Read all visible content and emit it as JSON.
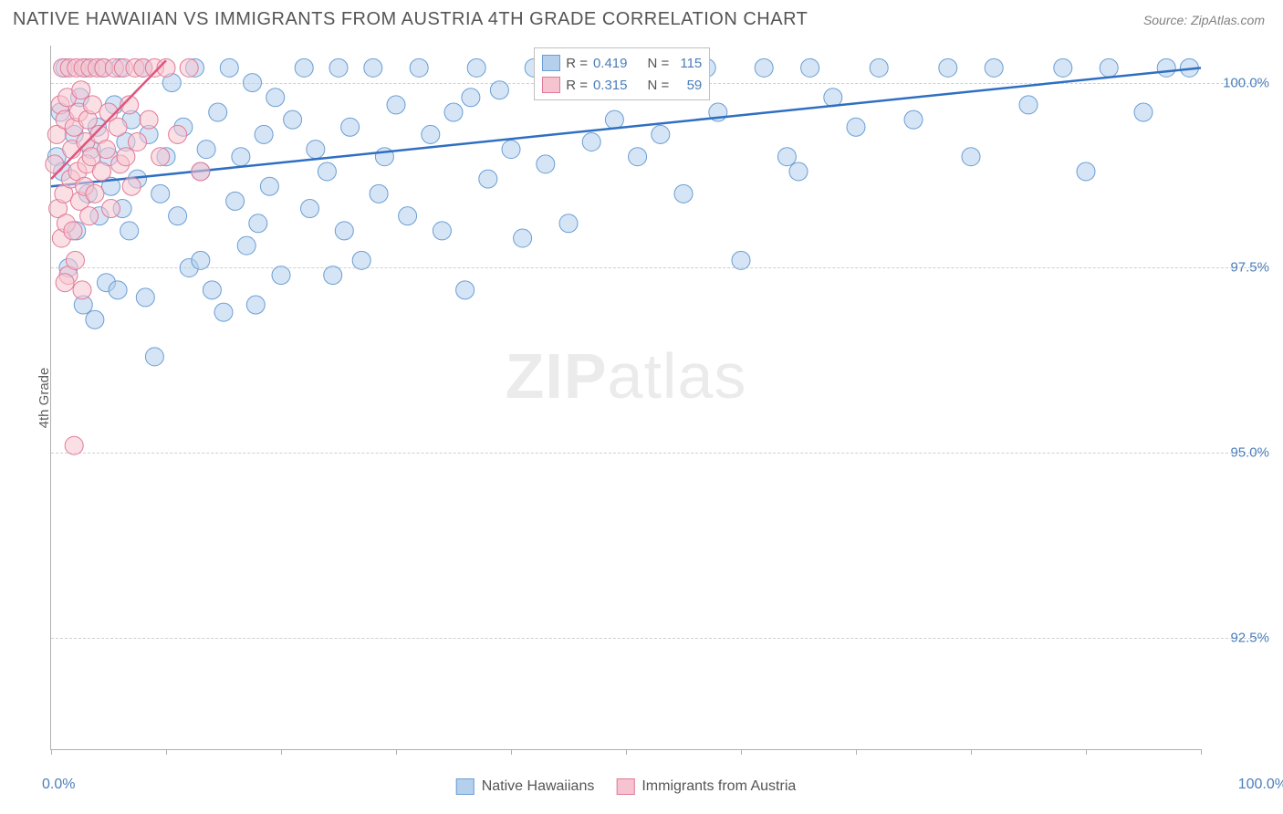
{
  "title": "NATIVE HAWAIIAN VS IMMIGRANTS FROM AUSTRIA 4TH GRADE CORRELATION CHART",
  "source": "Source: ZipAtlas.com",
  "y_axis_label": "4th Grade",
  "watermark_bold": "ZIP",
  "watermark_rest": "atlas",
  "chart": {
    "type": "scatter",
    "xlim": [
      0,
      100
    ],
    "ylim": [
      91.0,
      100.5
    ],
    "x_label_min": "0.0%",
    "x_label_max": "100.0%",
    "x_tick_positions": [
      0,
      10,
      20,
      30,
      40,
      50,
      60,
      70,
      80,
      90,
      100
    ],
    "y_gridlines": [
      92.5,
      95.0,
      97.5,
      100.0
    ],
    "y_tick_labels": [
      "92.5%",
      "95.0%",
      "97.5%",
      "100.0%"
    ],
    "grid_color": "#d0d0d0",
    "axis_color": "#b0b0b0",
    "label_color": "#4a7ebb",
    "marker_radius": 10,
    "marker_opacity": 0.55,
    "series": [
      {
        "name": "Native Hawaiians",
        "fill": "#b5d0ec",
        "stroke": "#6a9ed4",
        "trend": {
          "x1": 0,
          "y1": 98.6,
          "x2": 100,
          "y2": 100.2,
          "stroke": "#2f6fc1",
          "width": 2.5
        },
        "legend": {
          "r": "0.419",
          "n": "115"
        },
        "points": [
          [
            0.5,
            99.0
          ],
          [
            0.8,
            99.6
          ],
          [
            1.0,
            98.8
          ],
          [
            1.2,
            100.2
          ],
          [
            1.5,
            97.5
          ],
          [
            2.0,
            99.3
          ],
          [
            2.2,
            98.0
          ],
          [
            2.5,
            99.8
          ],
          [
            2.8,
            97.0
          ],
          [
            3.0,
            100.2
          ],
          [
            3.2,
            98.5
          ],
          [
            3.5,
            99.1
          ],
          [
            3.8,
            96.8
          ],
          [
            4.0,
            99.4
          ],
          [
            4.2,
            98.2
          ],
          [
            4.5,
            100.2
          ],
          [
            4.8,
            97.3
          ],
          [
            5.0,
            99.0
          ],
          [
            5.2,
            98.6
          ],
          [
            5.5,
            99.7
          ],
          [
            5.8,
            97.2
          ],
          [
            6.0,
            100.2
          ],
          [
            6.2,
            98.3
          ],
          [
            6.5,
            99.2
          ],
          [
            6.8,
            98.0
          ],
          [
            7.0,
            99.5
          ],
          [
            7.5,
            98.7
          ],
          [
            8.0,
            100.2
          ],
          [
            8.2,
            97.1
          ],
          [
            8.5,
            99.3
          ],
          [
            9.0,
            96.3
          ],
          [
            9.5,
            98.5
          ],
          [
            10.0,
            99.0
          ],
          [
            10.5,
            100.0
          ],
          [
            11.0,
            98.2
          ],
          [
            11.5,
            99.4
          ],
          [
            12.0,
            97.5
          ],
          [
            12.5,
            100.2
          ],
          [
            13.0,
            98.8
          ],
          [
            13.5,
            99.1
          ],
          [
            14.0,
            97.2
          ],
          [
            14.5,
            99.6
          ],
          [
            15.0,
            96.9
          ],
          [
            15.5,
            100.2
          ],
          [
            16.0,
            98.4
          ],
          [
            16.5,
            99.0
          ],
          [
            17.0,
            97.8
          ],
          [
            17.5,
            100.0
          ],
          [
            18.0,
            98.1
          ],
          [
            18.5,
            99.3
          ],
          [
            19.0,
            98.6
          ],
          [
            19.5,
            99.8
          ],
          [
            20.0,
            97.4
          ],
          [
            21.0,
            99.5
          ],
          [
            22.0,
            100.2
          ],
          [
            22.5,
            98.3
          ],
          [
            23.0,
            99.1
          ],
          [
            24.0,
            98.8
          ],
          [
            25.0,
            100.2
          ],
          [
            25.5,
            98.0
          ],
          [
            26.0,
            99.4
          ],
          [
            27.0,
            97.6
          ],
          [
            28.0,
            100.2
          ],
          [
            28.5,
            98.5
          ],
          [
            29.0,
            99.0
          ],
          [
            30.0,
            99.7
          ],
          [
            31.0,
            98.2
          ],
          [
            32.0,
            100.2
          ],
          [
            33.0,
            99.3
          ],
          [
            34.0,
            98.0
          ],
          [
            35.0,
            99.6
          ],
          [
            36.0,
            97.2
          ],
          [
            37.0,
            100.2
          ],
          [
            38.0,
            98.7
          ],
          [
            39.0,
            99.9
          ],
          [
            40.0,
            99.1
          ],
          [
            41.0,
            97.9
          ],
          [
            42.0,
            100.2
          ],
          [
            43.0,
            98.9
          ],
          [
            44.0,
            100.2
          ],
          [
            45.0,
            98.1
          ],
          [
            46.0,
            100.2
          ],
          [
            47.0,
            99.2
          ],
          [
            48.0,
            100.2
          ],
          [
            49.0,
            99.5
          ],
          [
            50.0,
            100.2
          ],
          [
            51.0,
            99.0
          ],
          [
            52.0,
            100.2
          ],
          [
            53.0,
            99.3
          ],
          [
            55.0,
            98.5
          ],
          [
            57.0,
            100.2
          ],
          [
            58.0,
            99.6
          ],
          [
            60.0,
            97.6
          ],
          [
            62.0,
            100.2
          ],
          [
            64.0,
            99.0
          ],
          [
            65.0,
            98.8
          ],
          [
            66.0,
            100.2
          ],
          [
            68.0,
            99.8
          ],
          [
            70.0,
            99.4
          ],
          [
            72.0,
            100.2
          ],
          [
            75.0,
            99.5
          ],
          [
            78.0,
            100.2
          ],
          [
            80.0,
            99.0
          ],
          [
            82.0,
            100.2
          ],
          [
            85.0,
            99.7
          ],
          [
            88.0,
            100.2
          ],
          [
            90.0,
            98.8
          ],
          [
            92.0,
            100.2
          ],
          [
            95.0,
            99.6
          ],
          [
            97.0,
            100.2
          ],
          [
            99.0,
            100.2
          ],
          [
            36.5,
            99.8
          ],
          [
            17.8,
            97.0
          ],
          [
            13.0,
            97.6
          ],
          [
            24.5,
            97.4
          ]
        ]
      },
      {
        "name": "Immigrants from Austria",
        "fill": "#f5c4d0",
        "stroke": "#e27a98",
        "trend": {
          "x1": 0,
          "y1": 98.7,
          "x2": 10,
          "y2": 100.3,
          "stroke": "#e0557d",
          "width": 2.5
        },
        "legend": {
          "r": "0.315",
          "n": "59"
        },
        "points": [
          [
            0.3,
            98.9
          ],
          [
            0.5,
            99.3
          ],
          [
            0.6,
            98.3
          ],
          [
            0.8,
            99.7
          ],
          [
            0.9,
            97.9
          ],
          [
            1.0,
            100.2
          ],
          [
            1.1,
            98.5
          ],
          [
            1.2,
            99.5
          ],
          [
            1.3,
            98.1
          ],
          [
            1.4,
            99.8
          ],
          [
            1.5,
            97.4
          ],
          [
            1.6,
            100.2
          ],
          [
            1.7,
            98.7
          ],
          [
            1.8,
            99.1
          ],
          [
            1.9,
            98.0
          ],
          [
            2.0,
            99.4
          ],
          [
            2.1,
            97.6
          ],
          [
            2.2,
            100.2
          ],
          [
            2.3,
            98.8
          ],
          [
            2.4,
            99.6
          ],
          [
            2.5,
            98.4
          ],
          [
            2.6,
            99.9
          ],
          [
            2.7,
            97.2
          ],
          [
            2.8,
            100.2
          ],
          [
            2.9,
            98.6
          ],
          [
            3.0,
            99.2
          ],
          [
            3.1,
            98.9
          ],
          [
            3.2,
            99.5
          ],
          [
            3.3,
            98.2
          ],
          [
            3.4,
            100.2
          ],
          [
            3.5,
            99.0
          ],
          [
            3.6,
            99.7
          ],
          [
            3.8,
            98.5
          ],
          [
            4.0,
            100.2
          ],
          [
            4.2,
            99.3
          ],
          [
            4.4,
            98.8
          ],
          [
            4.6,
            100.2
          ],
          [
            4.8,
            99.1
          ],
          [
            5.0,
            99.6
          ],
          [
            5.2,
            98.3
          ],
          [
            5.5,
            100.2
          ],
          [
            5.8,
            99.4
          ],
          [
            6.0,
            98.9
          ],
          [
            6.3,
            100.2
          ],
          [
            6.5,
            99.0
          ],
          [
            6.8,
            99.7
          ],
          [
            7.0,
            98.6
          ],
          [
            7.3,
            100.2
          ],
          [
            7.5,
            99.2
          ],
          [
            8.0,
            100.2
          ],
          [
            8.5,
            99.5
          ],
          [
            9.0,
            100.2
          ],
          [
            9.5,
            99.0
          ],
          [
            10.0,
            100.2
          ],
          [
            11.0,
            99.3
          ],
          [
            12.0,
            100.2
          ],
          [
            13.0,
            98.8
          ],
          [
            1.2,
            97.3
          ],
          [
            2.0,
            95.1
          ]
        ]
      }
    ]
  },
  "stats_legend": {
    "r_label": "R =",
    "n_label": "N ="
  },
  "bottom_legend": {
    "items": [
      {
        "label": "Native Hawaiians",
        "fill": "#b5d0ec",
        "stroke": "#6a9ed4"
      },
      {
        "label": "Immigrants from Austria",
        "fill": "#f5c4d0",
        "stroke": "#e27a98"
      }
    ]
  }
}
